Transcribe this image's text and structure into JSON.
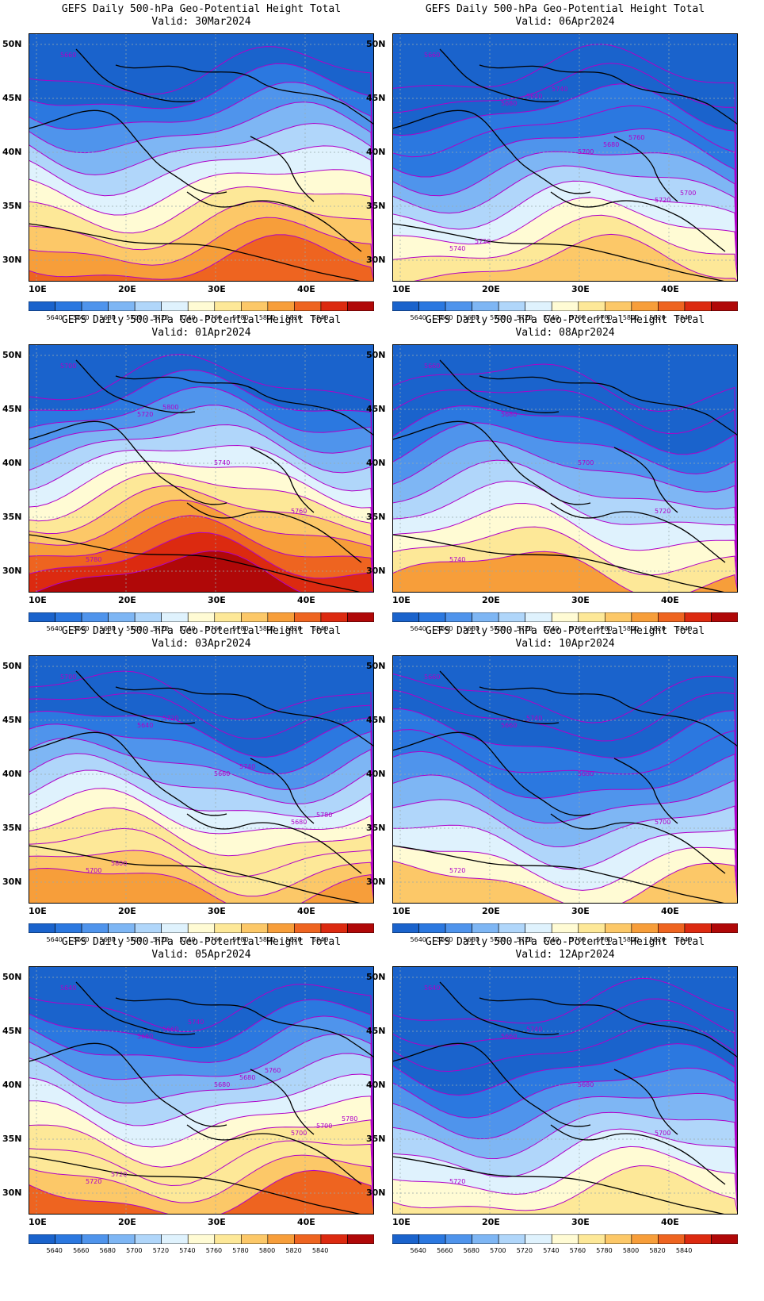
{
  "panels": [
    {
      "title": "GEFS Daily 500-hPa Geo-Potential Height Total",
      "valid": "Valid: 30Mar2024",
      "contour_labels": [
        "5660"
      ]
    },
    {
      "title": "GEFS Daily 500-hPa Geo-Potential Height Total",
      "valid": "Valid: 06Apr2024",
      "contour_labels": [
        "5660",
        "5680",
        "5700",
        "5720",
        "5740",
        "5640",
        "5680",
        "5700",
        "5720",
        "5740",
        "5760"
      ]
    },
    {
      "title": "GEFS Daily 500-hPa Geo-Potential Height Total",
      "valid": "Valid: 01Apr2024",
      "contour_labels": [
        "5700",
        "5720",
        "5740",
        "5760",
        "5780",
        "5800"
      ]
    },
    {
      "title": "GEFS Daily 500-hPa Geo-Potential Height Total",
      "valid": "Valid: 08Apr2024",
      "contour_labels": [
        "5660",
        "5680",
        "5700",
        "5720",
        "5740"
      ]
    },
    {
      "title": "GEFS Daily 500-hPa Geo-Potential Height Total",
      "valid": "Valid: 03Apr2024",
      "contour_labels": [
        "5700",
        "5640",
        "5660",
        "5680",
        "5700",
        "5720",
        "5740",
        "5780",
        "5800"
      ]
    },
    {
      "title": "GEFS Daily 500-hPa Geo-Potential Height Total",
      "valid": "Valid: 10Apr2024",
      "contour_labels": [
        "5660",
        "5660",
        "5680",
        "5700",
        "5720",
        "5740"
      ]
    },
    {
      "title": "GEFS Daily 500-hPa Geo-Potential Height Total",
      "valid": "Valid: 05Apr2024",
      "contour_labels": [
        "5640",
        "5660",
        "5680",
        "5700",
        "5720",
        "5660",
        "5680",
        "5700",
        "5720",
        "5740",
        "5760",
        "5780"
      ]
    },
    {
      "title": "GEFS Daily 500-hPa Geo-Potential Height Total",
      "valid": "Valid: 12Apr2024",
      "contour_labels": [
        "5640",
        "5660",
        "5680",
        "5700",
        "5720",
        "5740"
      ]
    }
  ],
  "lat_labels": [
    "50N",
    "45N",
    "40N",
    "35N",
    "30N"
  ],
  "lon_labels": [
    "10E",
    "20E",
    "30E",
    "40E"
  ],
  "colorbar": {
    "labels": [
      "5640",
      "5660",
      "5680",
      "5700",
      "5720",
      "5740",
      "5760",
      "5780",
      "5800",
      "5820",
      "5840"
    ],
    "colors": [
      "#1a63cc",
      "#2b78e0",
      "#4f94ec",
      "#7eb6f4",
      "#b0d6fa",
      "#dff2fd",
      "#fffbd4",
      "#fde898",
      "#fcc868",
      "#f79e3a",
      "#ee6420",
      "#dc2a10",
      "#b00808"
    ]
  },
  "contour_color": "#b000c8"
}
